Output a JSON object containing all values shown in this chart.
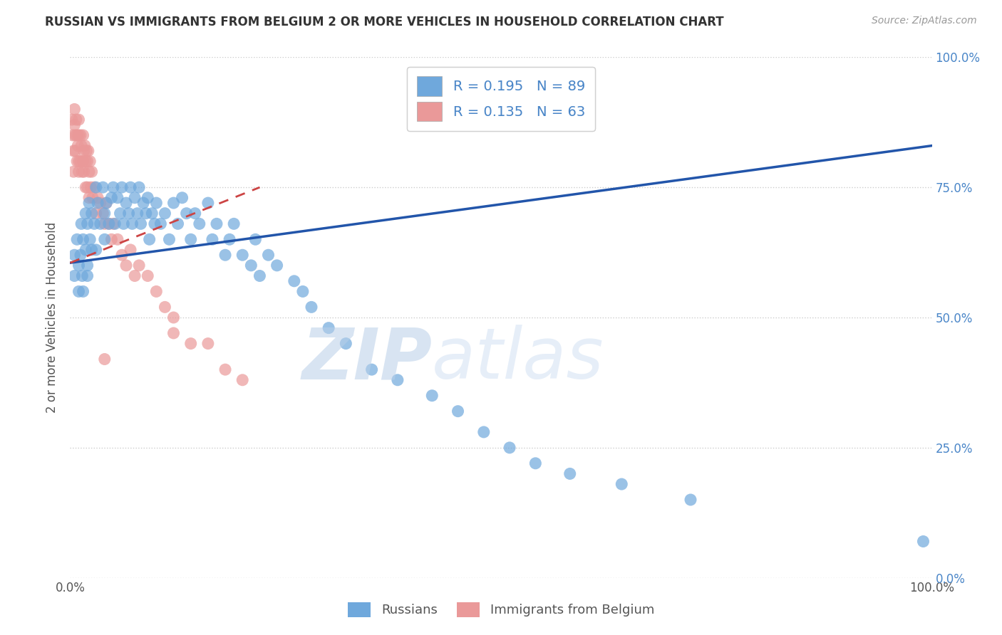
{
  "title": "RUSSIAN VS IMMIGRANTS FROM BELGIUM 2 OR MORE VEHICLES IN HOUSEHOLD CORRELATION CHART",
  "source": "Source: ZipAtlas.com",
  "ylabel": "2 or more Vehicles in Household",
  "xlim": [
    0,
    1
  ],
  "ylim": [
    0,
    1
  ],
  "xtick_labels": [
    "0.0%",
    "100.0%"
  ],
  "ytick_labels": [
    "0.0%",
    "25.0%",
    "50.0%",
    "75.0%",
    "100.0%"
  ],
  "ytick_positions": [
    0,
    0.25,
    0.5,
    0.75,
    1.0
  ],
  "russian_R": 0.195,
  "russian_N": 89,
  "belgium_R": 0.135,
  "belgium_N": 63,
  "russian_color": "#6fa8dc",
  "belgium_color": "#ea9999",
  "russian_line_color": "#2255aa",
  "belgium_line_color": "#cc4444",
  "watermark_zip": "ZIP",
  "watermark_atlas": "atlas",
  "legend_label_russian": "Russians",
  "legend_label_belgium": "Immigrants from Belgium",
  "russian_scatter_x": [
    0.005,
    0.005,
    0.008,
    0.01,
    0.01,
    0.012,
    0.013,
    0.014,
    0.015,
    0.015,
    0.018,
    0.018,
    0.02,
    0.02,
    0.02,
    0.022,
    0.023,
    0.025,
    0.025,
    0.028,
    0.03,
    0.03,
    0.032,
    0.035,
    0.038,
    0.04,
    0.04,
    0.042,
    0.045,
    0.048,
    0.05,
    0.052,
    0.055,
    0.058,
    0.06,
    0.062,
    0.065,
    0.068,
    0.07,
    0.072,
    0.075,
    0.078,
    0.08,
    0.082,
    0.085,
    0.088,
    0.09,
    0.092,
    0.095,
    0.098,
    0.1,
    0.105,
    0.11,
    0.115,
    0.12,
    0.125,
    0.13,
    0.135,
    0.14,
    0.145,
    0.15,
    0.16,
    0.165,
    0.17,
    0.18,
    0.185,
    0.19,
    0.2,
    0.21,
    0.215,
    0.22,
    0.23,
    0.24,
    0.26,
    0.27,
    0.28,
    0.3,
    0.32,
    0.35,
    0.38,
    0.42,
    0.45,
    0.48,
    0.51,
    0.54,
    0.58,
    0.64,
    0.72,
    0.99
  ],
  "russian_scatter_y": [
    0.62,
    0.58,
    0.65,
    0.6,
    0.55,
    0.62,
    0.68,
    0.58,
    0.65,
    0.55,
    0.7,
    0.63,
    0.68,
    0.6,
    0.58,
    0.72,
    0.65,
    0.7,
    0.63,
    0.68,
    0.75,
    0.63,
    0.72,
    0.68,
    0.75,
    0.7,
    0.65,
    0.72,
    0.68,
    0.73,
    0.75,
    0.68,
    0.73,
    0.7,
    0.75,
    0.68,
    0.72,
    0.7,
    0.75,
    0.68,
    0.73,
    0.7,
    0.75,
    0.68,
    0.72,
    0.7,
    0.73,
    0.65,
    0.7,
    0.68,
    0.72,
    0.68,
    0.7,
    0.65,
    0.72,
    0.68,
    0.73,
    0.7,
    0.65,
    0.7,
    0.68,
    0.72,
    0.65,
    0.68,
    0.62,
    0.65,
    0.68,
    0.62,
    0.6,
    0.65,
    0.58,
    0.62,
    0.6,
    0.57,
    0.55,
    0.52,
    0.48,
    0.45,
    0.4,
    0.38,
    0.35,
    0.32,
    0.28,
    0.25,
    0.22,
    0.2,
    0.18,
    0.15,
    0.07
  ],
  "belgium_scatter_x": [
    0.002,
    0.003,
    0.004,
    0.004,
    0.005,
    0.005,
    0.006,
    0.006,
    0.007,
    0.008,
    0.008,
    0.009,
    0.01,
    0.01,
    0.01,
    0.01,
    0.012,
    0.012,
    0.013,
    0.014,
    0.015,
    0.015,
    0.016,
    0.016,
    0.017,
    0.018,
    0.018,
    0.019,
    0.02,
    0.02,
    0.021,
    0.022,
    0.022,
    0.023,
    0.024,
    0.025,
    0.026,
    0.028,
    0.03,
    0.032,
    0.035,
    0.038,
    0.04,
    0.042,
    0.045,
    0.048,
    0.05,
    0.055,
    0.06,
    0.065,
    0.07,
    0.075,
    0.08,
    0.09,
    0.1,
    0.11,
    0.12,
    0.14,
    0.16,
    0.18,
    0.2,
    0.04,
    0.12
  ],
  "belgium_scatter_y": [
    0.88,
    0.85,
    0.82,
    0.78,
    0.9,
    0.87,
    0.85,
    0.82,
    0.88,
    0.85,
    0.8,
    0.83,
    0.88,
    0.85,
    0.8,
    0.78,
    0.85,
    0.8,
    0.83,
    0.78,
    0.85,
    0.8,
    0.82,
    0.78,
    0.83,
    0.8,
    0.75,
    0.82,
    0.8,
    0.75,
    0.82,
    0.78,
    0.73,
    0.8,
    0.75,
    0.78,
    0.73,
    0.75,
    0.7,
    0.73,
    0.72,
    0.7,
    0.68,
    0.72,
    0.68,
    0.65,
    0.68,
    0.65,
    0.62,
    0.6,
    0.63,
    0.58,
    0.6,
    0.58,
    0.55,
    0.52,
    0.5,
    0.45,
    0.45,
    0.4,
    0.38,
    0.42,
    0.47
  ],
  "russian_trendline_x": [
    0,
    1.0
  ],
  "russian_trendline_y": [
    0.605,
    0.83
  ],
  "belgium_trendline_x": [
    0,
    0.22
  ],
  "belgium_trendline_y": [
    0.605,
    0.75
  ]
}
